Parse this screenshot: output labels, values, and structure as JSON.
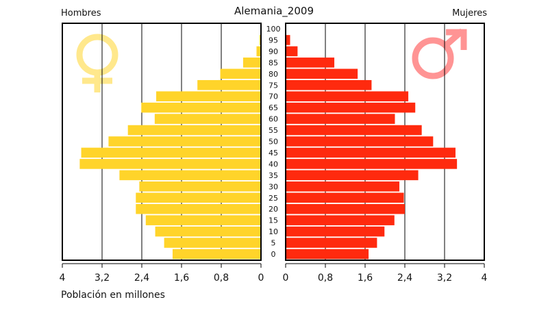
{
  "chart_data": {
    "type": "bar",
    "title": "Alemania_2009",
    "left_panel_label": "Hombres",
    "right_panel_label": "Mujeres",
    "xlabel": "Población en millones",
    "age_groups": [
      "0",
      "5",
      "10",
      "15",
      "20",
      "25",
      "30",
      "35",
      "40",
      "45",
      "50",
      "55",
      "60",
      "65",
      "70",
      "75",
      "80",
      "85",
      "90",
      "95",
      "100"
    ],
    "x_ticks_left": [
      "4",
      "3,2",
      "2,4",
      "1,6",
      "0,8",
      "0"
    ],
    "x_ticks_right": [
      "0",
      "0,8",
      "1,6",
      "2,4",
      "3,2",
      "4"
    ],
    "xlim": [
      0,
      4
    ],
    "grid": true,
    "series": [
      {
        "name": "Hombres",
        "color": "#FFD42A",
        "symbol": "female-symbol-icon",
        "symbol_color": "#FFE88C",
        "values": [
          1.78,
          1.95,
          2.13,
          2.32,
          2.52,
          2.52,
          2.45,
          2.85,
          3.65,
          3.62,
          3.07,
          2.68,
          2.14,
          2.41,
          2.11,
          1.28,
          0.82,
          0.36,
          0.09,
          0.03,
          0.0
        ]
      },
      {
        "name": "Mujeres",
        "color": "#FF2A0E",
        "symbol": "male-symbol-icon",
        "symbol_color": "#FF9494",
        "values": [
          1.67,
          1.84,
          1.99,
          2.19,
          2.4,
          2.38,
          2.29,
          2.67,
          3.45,
          3.42,
          2.97,
          2.74,
          2.2,
          2.61,
          2.47,
          1.73,
          1.45,
          0.98,
          0.24,
          0.09,
          0.0
        ]
      }
    ]
  }
}
